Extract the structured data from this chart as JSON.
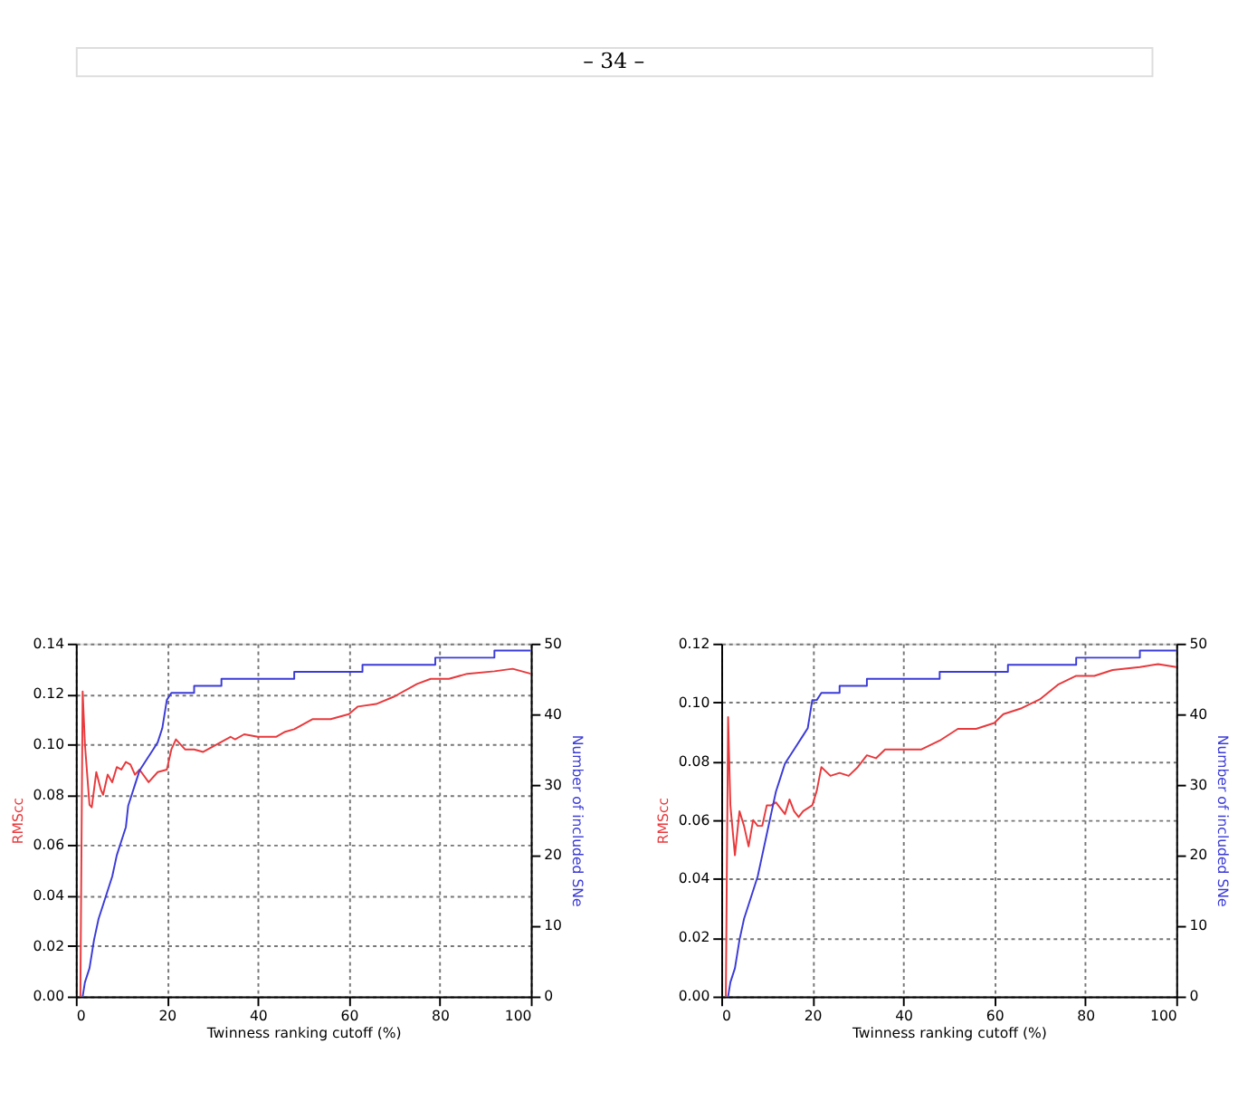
{
  "chart_data": [
    {
      "type": "line",
      "xlabel": "Twinness ranking cutoff (%)",
      "ylabel": "RMScc",
      "y2label": "Number of included SNe",
      "annotations": [
        "– 34 –"
      ],
      "grid": true,
      "xlim": [
        0,
        100
      ],
      "xticks": [
        0,
        20,
        40,
        60,
        80,
        100
      ],
      "ylim": [
        0,
        0.14
      ],
      "yticks": [
        {
          "value": 0,
          "label": "0.00"
        },
        {
          "value": 0.02,
          "label": "0.02"
        },
        {
          "value": 0.04,
          "label": "0.04"
        },
        {
          "value": 0.06,
          "label": "0.06"
        },
        {
          "value": 0.08,
          "label": "0.08"
        },
        {
          "value": 0.1,
          "label": "0.10"
        },
        {
          "value": 0.12,
          "label": "0.12"
        },
        {
          "value": 0.14,
          "label": "0.14"
        }
      ],
      "y2lim": [
        0,
        50
      ],
      "y2ticks": [
        0,
        10,
        20,
        30,
        40,
        50
      ],
      "series": [
        {
          "color": "#e8393c",
          "x": [
            1,
            1.5,
            2,
            3,
            3.5,
            4.5,
            5.5,
            6,
            7,
            8,
            9,
            10,
            11,
            12,
            13,
            14,
            16,
            18,
            20,
            21,
            22,
            24,
            26,
            28,
            30,
            32,
            34,
            35,
            37,
            40,
            44,
            46,
            48,
            52,
            56,
            60,
            62,
            66,
            70,
            75,
            78,
            82,
            86,
            92,
            96,
            100
          ],
          "values": [
            0,
            0.121,
            0.1,
            0.076,
            0.075,
            0.089,
            0.082,
            0.08,
            0.088,
            0.085,
            0.091,
            0.09,
            0.093,
            0.092,
            0.088,
            0.09,
            0.085,
            0.089,
            0.09,
            0.098,
            0.102,
            0.098,
            0.098,
            0.097,
            0.099,
            0.101,
            0.103,
            0.102,
            0.104,
            0.103,
            0.103,
            0.105,
            0.106,
            0.11,
            0.11,
            0.112,
            0.115,
            0.116,
            0.119,
            0.124,
            0.126,
            0.126,
            0.128,
            0.129,
            0.13,
            0.128
          ]
        },
        {
          "color": "#3b3bd8",
          "axis": "y2",
          "x": [
            1.5,
            2,
            3,
            4,
            5,
            6,
            8,
            9,
            10,
            11,
            11.5,
            12,
            13,
            14,
            15,
            17,
            18,
            19,
            20,
            21,
            26,
            26,
            27,
            32,
            32,
            48,
            48,
            63,
            63,
            79,
            79,
            92,
            92,
            100
          ],
          "values": [
            0,
            2,
            4,
            8,
            11,
            13,
            17,
            20,
            22,
            24,
            27,
            28,
            30,
            32,
            33,
            35,
            36,
            38,
            42,
            43,
            43,
            44,
            44,
            44,
            45,
            45,
            46,
            46,
            47,
            47,
            48,
            48,
            49,
            49
          ]
        }
      ]
    },
    {
      "type": "line",
      "xlabel": "Twinness ranking cutoff (%)",
      "ylabel": "RMScc",
      "y2label": "Number of included SNe",
      "grid": true,
      "xlim": [
        0,
        100
      ],
      "xticks": [
        0,
        20,
        40,
        60,
        80,
        100
      ],
      "ylim": [
        0,
        0.12
      ],
      "yticks": [
        {
          "value": 0,
          "label": "0.00"
        },
        {
          "value": 0.02,
          "label": "0.02"
        },
        {
          "value": 0.04,
          "label": "0.04"
        },
        {
          "value": 0.06,
          "label": "0.06"
        },
        {
          "value": 0.08,
          "label": "0.08"
        },
        {
          "value": 0.1,
          "label": "0.10"
        },
        {
          "value": 0.12,
          "label": "0.12"
        }
      ],
      "y2lim": [
        0,
        50
      ],
      "y2ticks": [
        0,
        10,
        20,
        30,
        40,
        50
      ],
      "series": [
        {
          "color": "#e8393c",
          "x": [
            1,
            1.5,
            2,
            3,
            4,
            5,
            6,
            7,
            8,
            9,
            10,
            11,
            12,
            13,
            14,
            15,
            16,
            17,
            18,
            20,
            21,
            22,
            24,
            26,
            28,
            30,
            32,
            34,
            36,
            40,
            44,
            48,
            52,
            56,
            60,
            62,
            66,
            70,
            74,
            78,
            82,
            86,
            92,
            96,
            100
          ],
          "values": [
            0,
            0.095,
            0.065,
            0.048,
            0.063,
            0.058,
            0.051,
            0.06,
            0.058,
            0.058,
            0.065,
            0.065,
            0.066,
            0.064,
            0.062,
            0.067,
            0.063,
            0.061,
            0.063,
            0.065,
            0.07,
            0.078,
            0.075,
            0.076,
            0.075,
            0.078,
            0.082,
            0.081,
            0.084,
            0.084,
            0.084,
            0.087,
            0.091,
            0.091,
            0.093,
            0.096,
            0.098,
            0.101,
            0.106,
            0.109,
            0.109,
            0.111,
            0.112,
            0.113,
            0.112
          ]
        },
        {
          "color": "#3b3bd8",
          "axis": "y2",
          "x": [
            1.5,
            2,
            3,
            4,
            5,
            6,
            8,
            9,
            10,
            11,
            12,
            13,
            14,
            16,
            18,
            19,
            20,
            21,
            22,
            26,
            26,
            27,
            32,
            32,
            48,
            48,
            63,
            63,
            78,
            78,
            92,
            92,
            100
          ],
          "values": [
            0,
            2,
            4,
            8,
            11,
            13,
            17,
            20,
            23,
            26,
            29,
            31,
            33,
            35,
            37,
            38,
            42,
            42,
            43,
            43,
            44,
            44,
            44,
            45,
            45,
            46,
            46,
            47,
            47,
            48,
            48,
            49,
            49
          ]
        }
      ]
    }
  ]
}
